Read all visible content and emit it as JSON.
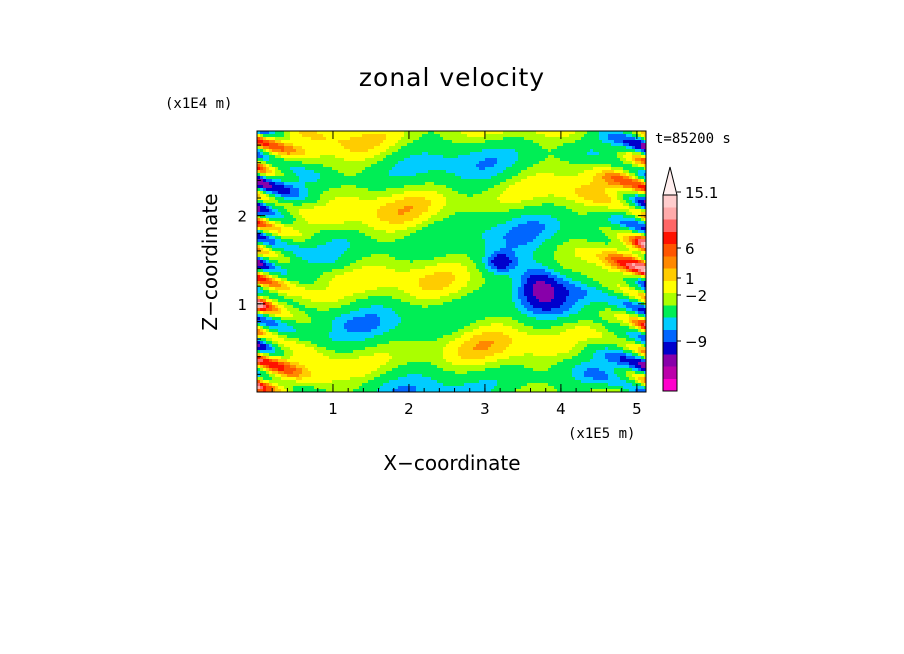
{
  "chart_data": {
    "type": "heatmap",
    "title": "zonal velocity",
    "xlabel": "X−coordinate",
    "ylabel": "Z−coordinate",
    "x_scale_label": "(x1E5 m)",
    "y_scale_label": "(x1E4 m)",
    "time_label": "t=85200 s",
    "xlim": [
      0,
      5.12
    ],
    "ylim": [
      0,
      2.96
    ],
    "x_ticks": [
      "1",
      "2",
      "3",
      "4",
      "5"
    ],
    "y_ticks": [
      "1",
      "2"
    ],
    "colorbar": {
      "tick_labels": [
        "15.1",
        "6",
        "1",
        "−2",
        "−9"
      ],
      "colors": [
        "#ff00cc",
        "#bb00aa",
        "#8800aa",
        "#0000cc",
        "#0066ff",
        "#00ccff",
        "#00ee55",
        "#aaff00",
        "#ffff00",
        "#ffcc00",
        "#ff8800",
        "#ff5500",
        "#ff1100",
        "#ff6666",
        "#ffaaaa",
        "#ffcccc"
      ],
      "extend": "max"
    },
    "field_description": "zonal wind field u(x,z) showing alternating positive (yellow/orange) and negative (green/cyan/blue) bands tilted across the domain, with strong small-scale structure near the lateral boundaries"
  }
}
